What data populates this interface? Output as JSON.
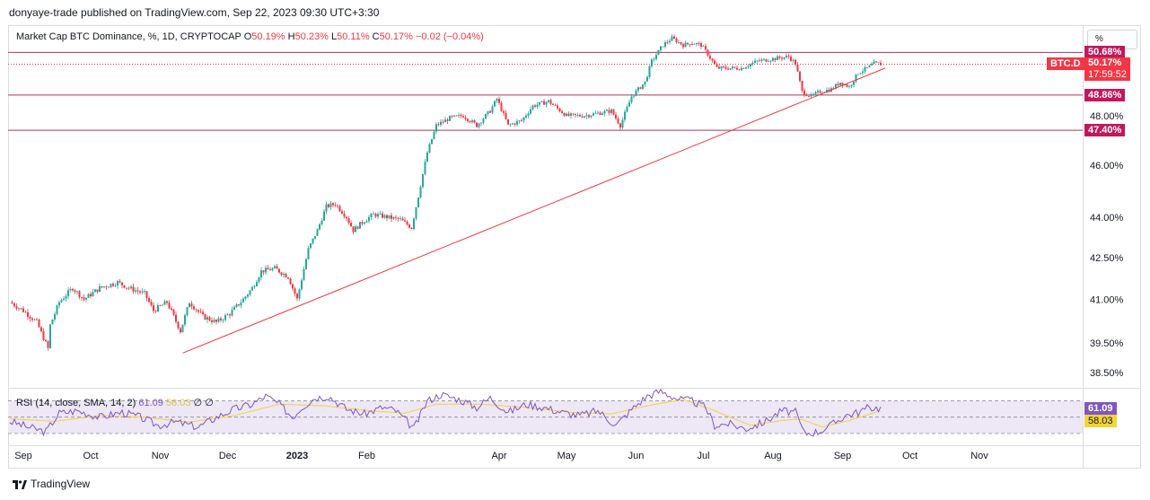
{
  "header": {
    "publish_line": "donyaye-trade published on TradingView.com, Sep 22, 2023 09:30 UTC+3:30"
  },
  "legend": {
    "symbol": "Market Cap BTC Dominance, %, 1D, CRYPTOCAP",
    "open_label": "O",
    "open": "50.19%",
    "high_label": "H",
    "high": "50.23%",
    "low_label": "L",
    "low": "50.11%",
    "close_label": "C",
    "close": "50.17%",
    "change": "−0.02 (−0.04%)"
  },
  "scale_button": "%",
  "rsi_legend": {
    "label": "RSI (14, close, SMA, 14, 2)",
    "rsi": "61.09",
    "sma": "58.03",
    "extra1": "∅",
    "extra2": "∅"
  },
  "colors": {
    "up": "#26a69a",
    "down": "#f23645",
    "hline": "#b5335a",
    "trendline": "#f23645",
    "rsi": "#7e57c2",
    "rsi_ma": "#f2d43a",
    "rsi_band": "#ede7f6",
    "tag_pink": "#c2185b",
    "tag_red": "#f23645"
  },
  "footer": {
    "brand": "TradingView",
    "logo_icon": "tradingview-logo-icon"
  },
  "chart_data": {
    "type": "candlestick",
    "ylim": [
      38.0,
      51.8
    ],
    "y_ticks": [
      "48.00%",
      "46.00%",
      "44.00%",
      "42.50%",
      "41.00%",
      "39.50%",
      "38.50%"
    ],
    "y_tick_values": [
      48.0,
      46.0,
      44.0,
      42.5,
      41.0,
      39.5,
      38.5
    ],
    "x_ticks": [
      "Sep",
      "Oct",
      "Nov",
      "Dec",
      "2023",
      "Feb",
      "Apr",
      "May",
      "Jun",
      "Jul",
      "Aug",
      "Sep",
      "Oct",
      "Nov"
    ],
    "x_tick_bold": [
      false,
      false,
      false,
      false,
      true,
      false,
      false,
      false,
      false,
      false,
      false,
      false,
      false,
      false
    ],
    "x_tick_days": [
      0,
      30,
      61,
      91,
      122,
      153,
      212,
      242,
      273,
      303,
      334,
      365,
      395,
      426
    ],
    "horizontal_levels": [
      {
        "value": 50.68,
        "label": "50.68%"
      },
      {
        "value": 48.86,
        "label": "48.86%"
      },
      {
        "value": 47.4,
        "label": "47.40%"
      }
    ],
    "last_price": {
      "symbol": "BTC.D",
      "value": 50.17,
      "label": "50.17%",
      "countdown": "17:59:52"
    },
    "trendline": {
      "from": {
        "day": 77,
        "value": 39.15
      },
      "to": {
        "day": 390,
        "value": 50.0
      }
    },
    "price_path": [
      [
        0,
        40.9
      ],
      [
        6,
        40.6
      ],
      [
        12,
        40.2
      ],
      [
        17,
        39.3
      ],
      [
        18,
        40.1
      ],
      [
        22,
        40.9
      ],
      [
        28,
        41.4
      ],
      [
        33,
        41.0
      ],
      [
        40,
        41.4
      ],
      [
        48,
        41.6
      ],
      [
        53,
        41.4
      ],
      [
        60,
        41.2
      ],
      [
        64,
        40.6
      ],
      [
        70,
        40.9
      ],
      [
        76,
        39.9
      ],
      [
        80,
        40.9
      ],
      [
        86,
        40.4
      ],
      [
        92,
        40.2
      ],
      [
        98,
        40.5
      ],
      [
        104,
        41.0
      ],
      [
        108,
        41.4
      ],
      [
        112,
        42.0
      ],
      [
        118,
        42.1
      ],
      [
        124,
        41.8
      ],
      [
        128,
        41.0
      ],
      [
        133,
        42.8
      ],
      [
        137,
        43.5
      ],
      [
        141,
        44.4
      ],
      [
        145,
        44.5
      ],
      [
        150,
        44.0
      ],
      [
        153,
        43.5
      ],
      [
        157,
        43.8
      ],
      [
        162,
        44.1
      ],
      [
        168,
        44.0
      ],
      [
        174,
        43.9
      ],
      [
        179,
        43.6
      ],
      [
        182,
        44.8
      ],
      [
        186,
        46.5
      ],
      [
        190,
        47.6
      ],
      [
        196,
        47.9
      ],
      [
        202,
        48.0
      ],
      [
        208,
        47.6
      ],
      [
        214,
        48.2
      ],
      [
        217,
        48.7
      ],
      [
        222,
        47.6
      ],
      [
        228,
        47.8
      ],
      [
        233,
        48.4
      ],
      [
        240,
        48.6
      ],
      [
        248,
        48.0
      ],
      [
        256,
        48.0
      ],
      [
        262,
        48.1
      ],
      [
        268,
        48.2
      ],
      [
        272,
        47.6
      ],
      [
        277,
        48.8
      ],
      [
        283,
        49.4
      ],
      [
        286,
        50.3
      ],
      [
        291,
        51.0
      ],
      [
        295,
        51.3
      ],
      [
        300,
        51.0
      ],
      [
        304,
        51.1
      ],
      [
        308,
        51.0
      ],
      [
        311,
        50.6
      ],
      [
        315,
        50.0
      ],
      [
        320,
        50.0
      ],
      [
        326,
        50.0
      ],
      [
        333,
        50.3
      ],
      [
        340,
        50.4
      ],
      [
        347,
        50.5
      ],
      [
        350,
        50.2
      ],
      [
        353,
        49.0
      ],
      [
        357,
        48.8
      ],
      [
        361,
        49.0
      ],
      [
        366,
        49.1
      ],
      [
        370,
        49.4
      ],
      [
        374,
        49.2
      ],
      [
        378,
        49.8
      ],
      [
        382,
        50.0
      ],
      [
        385,
        50.2
      ],
      [
        388,
        50.17
      ]
    ],
    "rsi": {
      "value": 61.09,
      "sma": 58.03,
      "bands": [
        70,
        50,
        30
      ],
      "ylim": [
        20,
        85
      ],
      "rsi_path": [
        [
          0,
          45
        ],
        [
          8,
          38
        ],
        [
          16,
          32
        ],
        [
          22,
          55
        ],
        [
          30,
          58
        ],
        [
          40,
          50
        ],
        [
          50,
          56
        ],
        [
          58,
          50
        ],
        [
          66,
          40
        ],
        [
          74,
          44
        ],
        [
          84,
          38
        ],
        [
          92,
          50
        ],
        [
          100,
          60
        ],
        [
          108,
          66
        ],
        [
          114,
          76
        ],
        [
          120,
          66
        ],
        [
          126,
          50
        ],
        [
          130,
          62
        ],
        [
          136,
          74
        ],
        [
          142,
          76
        ],
        [
          150,
          60
        ],
        [
          158,
          54
        ],
        [
          166,
          62
        ],
        [
          172,
          58
        ],
        [
          180,
          36
        ],
        [
          186,
          70
        ],
        [
          192,
          78
        ],
        [
          200,
          72
        ],
        [
          208,
          62
        ],
        [
          214,
          74
        ],
        [
          222,
          56
        ],
        [
          230,
          66
        ],
        [
          238,
          62
        ],
        [
          246,
          56
        ],
        [
          254,
          52
        ],
        [
          262,
          58
        ],
        [
          270,
          40
        ],
        [
          278,
          62
        ],
        [
          284,
          76
        ],
        [
          290,
          82
        ],
        [
          298,
          72
        ],
        [
          304,
          70
        ],
        [
          310,
          62
        ],
        [
          314,
          40
        ],
        [
          320,
          42
        ],
        [
          328,
          36
        ],
        [
          336,
          44
        ],
        [
          344,
          58
        ],
        [
          350,
          56
        ],
        [
          354,
          30
        ],
        [
          360,
          32
        ],
        [
          366,
          40
        ],
        [
          372,
          52
        ],
        [
          378,
          56
        ],
        [
          383,
          62
        ],
        [
          388,
          61.09
        ]
      ],
      "sma_path": [
        [
          0,
          48
        ],
        [
          20,
          45
        ],
        [
          40,
          52
        ],
        [
          60,
          50
        ],
        [
          80,
          44
        ],
        [
          100,
          52
        ],
        [
          120,
          66
        ],
        [
          140,
          64
        ],
        [
          160,
          58
        ],
        [
          176,
          55
        ],
        [
          190,
          66
        ],
        [
          210,
          66
        ],
        [
          230,
          62
        ],
        [
          250,
          56
        ],
        [
          268,
          54
        ],
        [
          284,
          64
        ],
        [
          300,
          72
        ],
        [
          314,
          58
        ],
        [
          330,
          40
        ],
        [
          344,
          46
        ],
        [
          352,
          48
        ],
        [
          362,
          38
        ],
        [
          374,
          46
        ],
        [
          388,
          58.03
        ]
      ]
    }
  }
}
